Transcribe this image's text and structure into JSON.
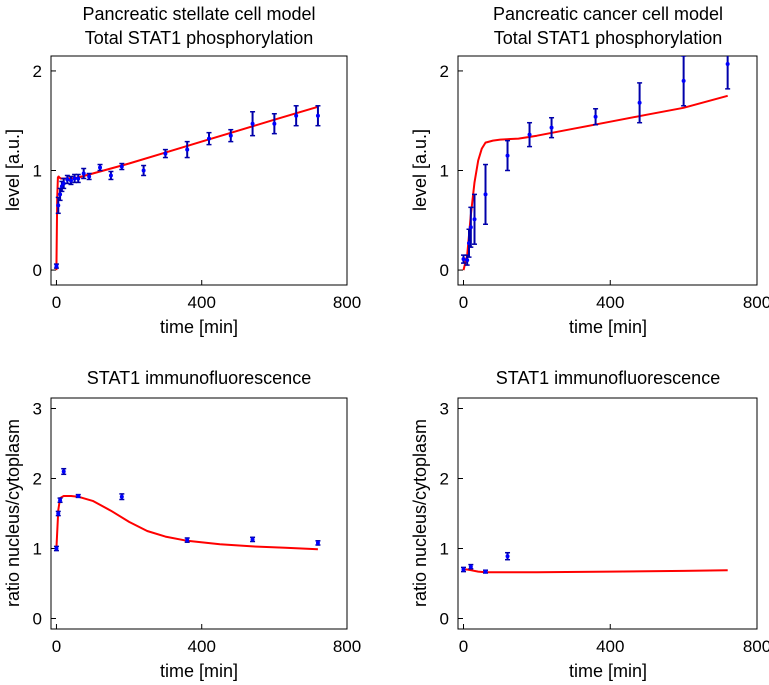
{
  "chart_data": [
    {
      "type": "scatter",
      "title": [
        "Pancreatic stellate cell model",
        "Total STAT1 phosphorylation"
      ],
      "xlabel": "time [min]",
      "ylabel": "level [a.u.]",
      "xlim": [
        -15,
        800
      ],
      "ylim": [
        -0.15,
        2.15
      ],
      "xticks": [
        0,
        400,
        800
      ],
      "yticks": [
        0,
        1,
        2
      ],
      "grid": false,
      "colors": {
        "data": "#0000ff",
        "errorbar": "#0000aa",
        "model": "#ff0000"
      },
      "measurements": [
        {
          "x": 0,
          "y": 0.04,
          "err": 0.02
        },
        {
          "x": 5,
          "y": 0.65,
          "err": 0.08
        },
        {
          "x": 10,
          "y": 0.76,
          "err": 0.06
        },
        {
          "x": 15,
          "y": 0.84,
          "err": 0.05
        },
        {
          "x": 20,
          "y": 0.87,
          "err": 0.05
        },
        {
          "x": 30,
          "y": 0.91,
          "err": 0.04
        },
        {
          "x": 40,
          "y": 0.9,
          "err": 0.04
        },
        {
          "x": 50,
          "y": 0.92,
          "err": 0.04
        },
        {
          "x": 60,
          "y": 0.92,
          "err": 0.04
        },
        {
          "x": 75,
          "y": 0.97,
          "err": 0.05
        },
        {
          "x": 90,
          "y": 0.94,
          "err": 0.03
        },
        {
          "x": 120,
          "y": 1.03,
          "err": 0.03
        },
        {
          "x": 150,
          "y": 0.95,
          "err": 0.04
        },
        {
          "x": 180,
          "y": 1.04,
          "err": 0.03
        },
        {
          "x": 240,
          "y": 1.0,
          "err": 0.05
        },
        {
          "x": 300,
          "y": 1.17,
          "err": 0.04
        },
        {
          "x": 360,
          "y": 1.21,
          "err": 0.08
        },
        {
          "x": 420,
          "y": 1.32,
          "err": 0.06
        },
        {
          "x": 480,
          "y": 1.35,
          "err": 0.06
        },
        {
          "x": 540,
          "y": 1.47,
          "err": 0.12
        },
        {
          "x": 600,
          "y": 1.47,
          "err": 0.1
        },
        {
          "x": 660,
          "y": 1.55,
          "err": 0.1
        },
        {
          "x": 720,
          "y": 1.55,
          "err": 0.1
        }
      ],
      "model": {
        "x": [
          0,
          2,
          4,
          6,
          8,
          12,
          20,
          40,
          60,
          100,
          150,
          200,
          300,
          400,
          500,
          600,
          720
        ],
        "y": [
          0.0,
          0.72,
          0.93,
          0.94,
          0.93,
          0.92,
          0.92,
          0.92,
          0.93,
          0.97,
          1.02,
          1.07,
          1.18,
          1.29,
          1.4,
          1.51,
          1.64
        ]
      }
    },
    {
      "type": "scatter",
      "title": [
        "Pancreatic cancer cell model",
        "Total STAT1 phosphorylation"
      ],
      "xlabel": "time [min]",
      "ylabel": "level [a.u.]",
      "xlim": [
        -15,
        800
      ],
      "ylim": [
        -0.15,
        2.15
      ],
      "xticks": [
        0,
        400,
        800
      ],
      "yticks": [
        0,
        1,
        2
      ],
      "grid": false,
      "colors": {
        "data": "#0000ff",
        "errorbar": "#0000aa",
        "model": "#ff0000"
      },
      "measurements": [
        {
          "x": 0,
          "y": 0.11,
          "err": 0.04
        },
        {
          "x": 10,
          "y": 0.1,
          "err": 0.05
        },
        {
          "x": 15,
          "y": 0.27,
          "err": 0.14
        },
        {
          "x": 20,
          "y": 0.43,
          "err": 0.2
        },
        {
          "x": 30,
          "y": 0.51,
          "err": 0.25
        },
        {
          "x": 60,
          "y": 0.76,
          "err": 0.3
        },
        {
          "x": 120,
          "y": 1.15,
          "err": 0.15
        },
        {
          "x": 180,
          "y": 1.36,
          "err": 0.12
        },
        {
          "x": 240,
          "y": 1.43,
          "err": 0.1
        },
        {
          "x": 360,
          "y": 1.54,
          "err": 0.08
        },
        {
          "x": 480,
          "y": 1.68,
          "err": 0.2
        },
        {
          "x": 600,
          "y": 1.9,
          "err": 0.25
        },
        {
          "x": 720,
          "y": 2.07,
          "err": 0.25
        }
      ],
      "model": {
        "x": [
          0,
          10,
          20,
          30,
          40,
          50,
          60,
          80,
          100,
          150,
          200,
          300,
          400,
          500,
          600,
          720
        ],
        "y": [
          0.0,
          0.15,
          0.55,
          0.88,
          1.1,
          1.22,
          1.28,
          1.3,
          1.31,
          1.32,
          1.35,
          1.42,
          1.49,
          1.56,
          1.63,
          1.75
        ]
      }
    },
    {
      "type": "scatter",
      "title": [
        "STAT1 immunofluorescence"
      ],
      "xlabel": "time [min]",
      "ylabel": "ratio nucleus/cytoplasm",
      "xlim": [
        -15,
        800
      ],
      "ylim": [
        -0.15,
        3.15
      ],
      "xticks": [
        0,
        400,
        800
      ],
      "yticks": [
        0,
        1,
        2,
        3
      ],
      "grid": false,
      "colors": {
        "data": "#0000ff",
        "errorbar": "#0000aa",
        "model": "#ff0000"
      },
      "measurements": [
        {
          "x": 0,
          "y": 1.0,
          "err": 0.03
        },
        {
          "x": 5,
          "y": 1.5,
          "err": 0.03
        },
        {
          "x": 10,
          "y": 1.69,
          "err": 0.03
        },
        {
          "x": 20,
          "y": 2.1,
          "err": 0.04
        },
        {
          "x": 60,
          "y": 1.75,
          "err": 0.02
        },
        {
          "x": 180,
          "y": 1.74,
          "err": 0.04
        },
        {
          "x": 360,
          "y": 1.12,
          "err": 0.03
        },
        {
          "x": 540,
          "y": 1.13,
          "err": 0.03
        },
        {
          "x": 720,
          "y": 1.08,
          "err": 0.03
        }
      ],
      "model": {
        "x": [
          0,
          5,
          10,
          20,
          40,
          60,
          100,
          150,
          200,
          250,
          300,
          360,
          450,
          540,
          630,
          720
        ],
        "y": [
          1.0,
          1.55,
          1.72,
          1.75,
          1.75,
          1.74,
          1.68,
          1.54,
          1.38,
          1.25,
          1.17,
          1.11,
          1.06,
          1.03,
          1.01,
          0.99
        ]
      }
    },
    {
      "type": "scatter",
      "title": [
        "STAT1 immunofluorescence"
      ],
      "xlabel": "time [min]",
      "ylabel": "ratio nucleus/cytoplasm",
      "xlim": [
        -15,
        800
      ],
      "ylim": [
        -0.15,
        3.15
      ],
      "xticks": [
        0,
        400,
        800
      ],
      "yticks": [
        0,
        1,
        2,
        3
      ],
      "grid": false,
      "colors": {
        "data": "#0000ff",
        "errorbar": "#0000aa",
        "model": "#ff0000"
      },
      "measurements": [
        {
          "x": 0,
          "y": 0.7,
          "err": 0.03
        },
        {
          "x": 20,
          "y": 0.74,
          "err": 0.03
        },
        {
          "x": 60,
          "y": 0.67,
          "err": 0.02
        },
        {
          "x": 120,
          "y": 0.89,
          "err": 0.05
        }
      ],
      "model": {
        "x": [
          0,
          10,
          20,
          40,
          60,
          100,
          200,
          400,
          600,
          720
        ],
        "y": [
          0.7,
          0.7,
          0.69,
          0.67,
          0.66,
          0.66,
          0.66,
          0.67,
          0.68,
          0.69
        ]
      }
    }
  ]
}
